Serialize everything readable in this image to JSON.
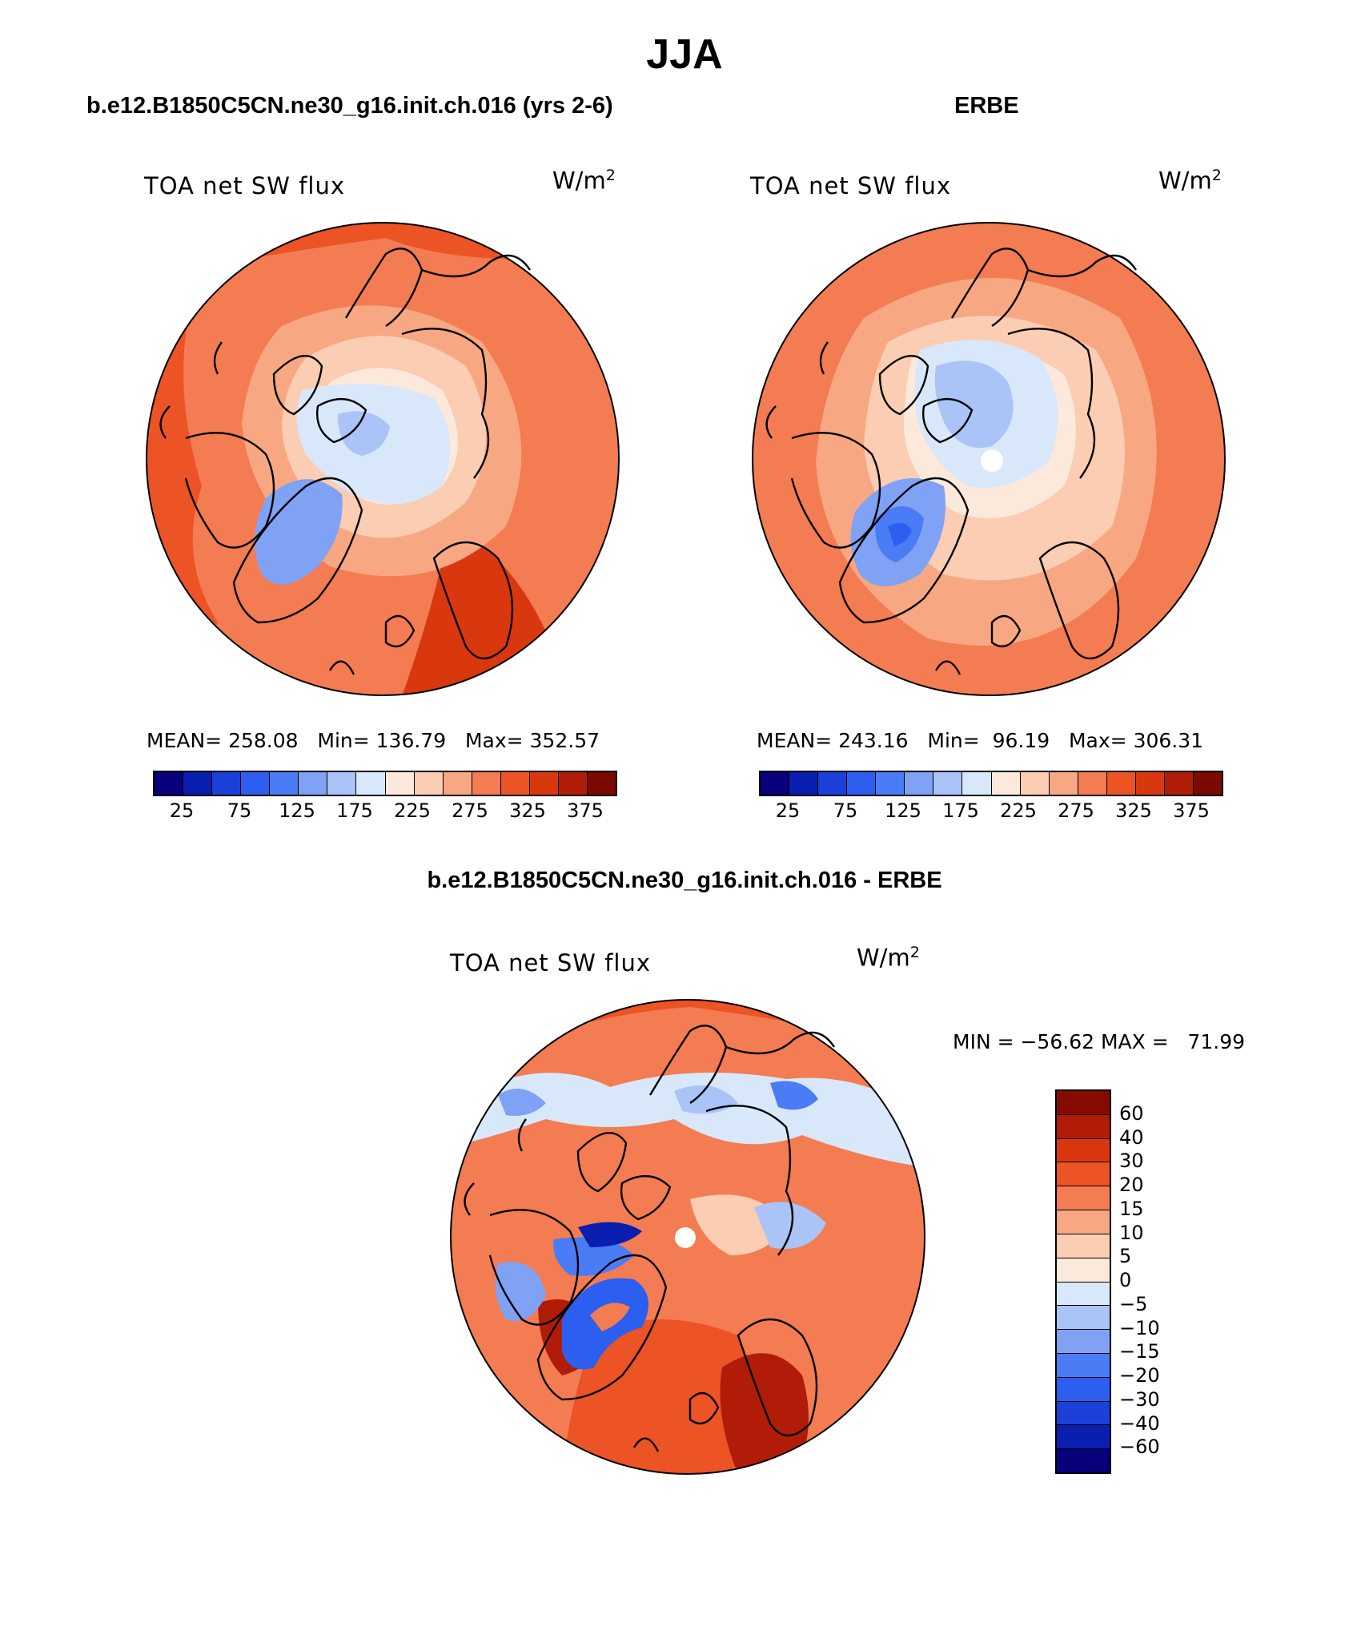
{
  "main_title": "JJA",
  "panels": [
    {
      "title": "b.e12.B1850C5CN.ne30_g16.init.ch.016 (yrs 2-6)",
      "variable": "TOA net SW flux",
      "units": "W/m",
      "units_sup": "2",
      "stats": "MEAN= 258.08   Min= 136.79   Max= 352.57",
      "cb_ticks": [
        "25",
        "75",
        "125",
        "175",
        "225",
        "275",
        "325",
        "375"
      ]
    },
    {
      "title": "ERBE",
      "variable": "TOA net SW flux",
      "units": "W/m",
      "units_sup": "2",
      "stats": "MEAN= 243.16   Min=  96.19   Max= 306.31",
      "cb_ticks": [
        "25",
        "75",
        "125",
        "175",
        "225",
        "275",
        "325",
        "375"
      ]
    },
    {
      "title": "b.e12.B1850C5CN.ne30_g16.init.ch.016 - ERBE",
      "variable": "TOA net SW flux",
      "units": "W/m",
      "units_sup": "2",
      "stats": "MIN = −56.62 MAX =   71.99",
      "cb_ticks": [
        "60",
        "40",
        "30",
        "20",
        "15",
        "10",
        "5",
        "0",
        "−5",
        "−10",
        "−15",
        "−20",
        "−30",
        "−40",
        "−60"
      ]
    }
  ],
  "colors": {
    "abs_scale": [
      "#08007a",
      "#0a1fb0",
      "#1a40d8",
      "#2c5ef0",
      "#4a7cf5",
      "#7fa2f5",
      "#aac4f7",
      "#d8e8fa",
      "#fde9dc",
      "#fbcdb2",
      "#f7a883",
      "#f47c52",
      "#ec5325",
      "#d9380f",
      "#b01c07",
      "#7a0a00"
    ],
    "diff_scale": [
      "#870a00",
      "#b01c07",
      "#d9380f",
      "#ec5325",
      "#f47c52",
      "#f7a883",
      "#fbcdb2",
      "#fde9dc",
      "#d8e8fa",
      "#aac4f7",
      "#7fa2f5",
      "#4a7cf5",
      "#2c5ef0",
      "#1a40d8",
      "#0a1fb0",
      "#08007a"
    ]
  }
}
